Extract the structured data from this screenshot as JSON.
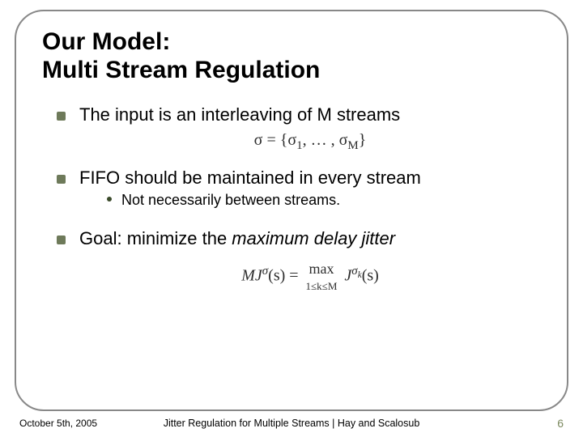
{
  "title_line1": "Our Model:",
  "title_line2": "Multi Stream Regulation",
  "bullets": {
    "b1": "The input is an interleaving of M streams",
    "b2": "FIFO should be maintained in every stream",
    "b2_sub": "Not necessarily between streams.",
    "b3_prefix": "Goal: minimize the ",
    "b3_italic": "maximum delay jitter"
  },
  "formulas": {
    "sigma_set_html": "σ = {σ<sub>1</sub>, … , σ<sub>M</sub>}",
    "mj_left": "MJ",
    "mj_sigma_sup": "σ",
    "mj_args": "(s) = ",
    "mj_max_top": "max",
    "mj_max_bot": "1≤k≤M",
    "mj_right_left": " J",
    "mj_right_sup": "σ<sub>k</sub>",
    "mj_right_args": "(s)"
  },
  "footer": {
    "date": "October 5th, 2005",
    "middle": "Jitter Regulation for Multiple Streams | Hay and Scalosub",
    "page": "6"
  },
  "colors": {
    "bullet_square": "#6e7a5a",
    "sub_bullet_dot": "#3a4a2a",
    "frame_border": "#888888",
    "page_number": "#7c8a60"
  },
  "fonts": {
    "title_family": "Arial Black",
    "title_size_pt": 22,
    "body_size_pt": 16,
    "sub_size_pt": 13,
    "footer_size_pt": 9,
    "formula_family": "Times New Roman"
  }
}
